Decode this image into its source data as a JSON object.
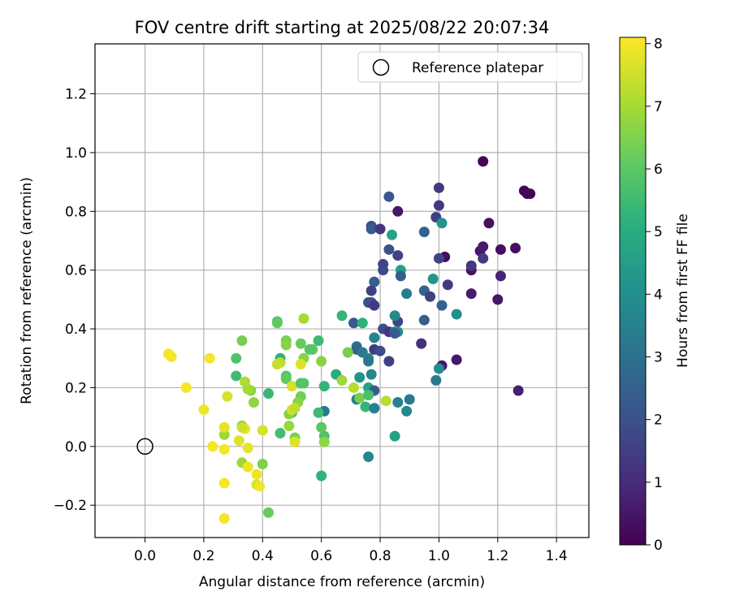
{
  "chart_data": {
    "type": "scatter",
    "title": "FOV centre drift starting at 2025/08/22 20:07:34",
    "xlabel": "Angular distance from reference (arcmin)",
    "ylabel": "Rotation from reference (arcmin)",
    "xlim": [
      -0.17,
      1.51
    ],
    "ylim": [
      -0.31,
      1.37
    ],
    "x_ticks": [
      0.0,
      0.2,
      0.4,
      0.6,
      0.8,
      1.0,
      1.2,
      1.4
    ],
    "x_tick_labels": [
      "0.0",
      "0.2",
      "0.4",
      "0.6",
      "0.8",
      "1.0",
      "1.2",
      "1.4"
    ],
    "y_ticks": [
      -0.2,
      0.0,
      0.2,
      0.4,
      0.6,
      0.8,
      1.0,
      1.2
    ],
    "y_tick_labels": [
      "−0.2",
      "0.0",
      "0.2",
      "0.4",
      "0.6",
      "0.8",
      "1.0",
      "1.2"
    ],
    "grid": true,
    "legend": {
      "position": "top-right",
      "entries": [
        "Reference platepar"
      ]
    },
    "reference_point": {
      "x": 0.0,
      "y": 0.0
    },
    "colorbar": {
      "label": "Hours from first FF file",
      "min": 0,
      "max": 8.1,
      "ticks": [
        0,
        1,
        2,
        3,
        4,
        5,
        6,
        7,
        8
      ],
      "tick_labels": [
        "0",
        "1",
        "2",
        "3",
        "4",
        "5",
        "6",
        "7",
        "8"
      ],
      "colormap": "viridis"
    },
    "points": [
      {
        "x": 1.15,
        "y": 0.97,
        "h": 0.1
      },
      {
        "x": 1.29,
        "y": 0.87,
        "h": 0.1
      },
      {
        "x": 1.3,
        "y": 0.86,
        "h": 0.1
      },
      {
        "x": 1.31,
        "y": 0.86,
        "h": 0.1
      },
      {
        "x": 1.17,
        "y": 0.76,
        "h": 0.4
      },
      {
        "x": 1.26,
        "y": 0.675,
        "h": 0.3
      },
      {
        "x": 1.21,
        "y": 0.67,
        "h": 0.3
      },
      {
        "x": 1.14,
        "y": 0.665,
        "h": 0.5
      },
      {
        "x": 1.15,
        "y": 0.68,
        "h": 0.6
      },
      {
        "x": 1.02,
        "y": 0.645,
        "h": 0.3
      },
      {
        "x": 1.11,
        "y": 0.6,
        "h": 0.4
      },
      {
        "x": 1.21,
        "y": 0.58,
        "h": 0.8
      },
      {
        "x": 1.2,
        "y": 0.5,
        "h": 0.5
      },
      {
        "x": 1.11,
        "y": 0.52,
        "h": 0.6
      },
      {
        "x": 1.03,
        "y": 0.55,
        "h": 1.4
      },
      {
        "x": 1.15,
        "y": 0.64,
        "h": 1.4
      },
      {
        "x": 1.11,
        "y": 0.615,
        "h": 1.3
      },
      {
        "x": 1.27,
        "y": 0.19,
        "h": 0.7
      },
      {
        "x": 1.06,
        "y": 0.295,
        "h": 0.5
      },
      {
        "x": 1.01,
        "y": 0.275,
        "h": 0.5
      },
      {
        "x": 1.0,
        "y": 0.88,
        "h": 1.3
      },
      {
        "x": 1.0,
        "y": 0.82,
        "h": 1.3
      },
      {
        "x": 0.99,
        "y": 0.78,
        "h": 1.5
      },
      {
        "x": 0.86,
        "y": 0.8,
        "h": 0.5
      },
      {
        "x": 0.83,
        "y": 0.85,
        "h": 2.2
      },
      {
        "x": 0.77,
        "y": 0.75,
        "h": 2.0
      },
      {
        "x": 0.77,
        "y": 0.74,
        "h": 2.3
      },
      {
        "x": 0.8,
        "y": 0.74,
        "h": 1.2
      },
      {
        "x": 0.84,
        "y": 0.72,
        "h": 4.7
      },
      {
        "x": 0.95,
        "y": 0.73,
        "h": 2.6
      },
      {
        "x": 1.01,
        "y": 0.76,
        "h": 4.2
      },
      {
        "x": 0.83,
        "y": 0.67,
        "h": 2.1
      },
      {
        "x": 0.86,
        "y": 0.65,
        "h": 1.6
      },
      {
        "x": 0.81,
        "y": 0.62,
        "h": 1.7
      },
      {
        "x": 0.81,
        "y": 0.6,
        "h": 1.8
      },
      {
        "x": 0.87,
        "y": 0.6,
        "h": 4.6
      },
      {
        "x": 0.87,
        "y": 0.58,
        "h": 2.4
      },
      {
        "x": 1.0,
        "y": 0.64,
        "h": 1.7
      },
      {
        "x": 0.98,
        "y": 0.57,
        "h": 4.2
      },
      {
        "x": 0.95,
        "y": 0.53,
        "h": 2.6
      },
      {
        "x": 0.97,
        "y": 0.51,
        "h": 1.6
      },
      {
        "x": 0.89,
        "y": 0.52,
        "h": 3.4
      },
      {
        "x": 0.78,
        "y": 0.56,
        "h": 2.4
      },
      {
        "x": 0.77,
        "y": 0.53,
        "h": 1.5
      },
      {
        "x": 0.77,
        "y": 0.49,
        "h": 1.9
      },
      {
        "x": 0.76,
        "y": 0.49,
        "h": 2.0
      },
      {
        "x": 0.78,
        "y": 0.48,
        "h": 1.4
      },
      {
        "x": 1.01,
        "y": 0.48,
        "h": 2.5
      },
      {
        "x": 1.06,
        "y": 0.45,
        "h": 4.0
      },
      {
        "x": 0.95,
        "y": 0.43,
        "h": 2.4
      },
      {
        "x": 0.86,
        "y": 0.425,
        "h": 1.7
      },
      {
        "x": 0.85,
        "y": 0.445,
        "h": 3.8
      },
      {
        "x": 0.81,
        "y": 0.4,
        "h": 1.9
      },
      {
        "x": 0.83,
        "y": 0.39,
        "h": 1.2
      },
      {
        "x": 0.85,
        "y": 0.39,
        "h": 3.7
      },
      {
        "x": 0.86,
        "y": 0.39,
        "h": 3.9
      },
      {
        "x": 0.85,
        "y": 0.385,
        "h": 2.3
      },
      {
        "x": 0.71,
        "y": 0.42,
        "h": 2.3
      },
      {
        "x": 0.74,
        "y": 0.42,
        "h": 5.2
      },
      {
        "x": 0.78,
        "y": 0.37,
        "h": 3.6
      },
      {
        "x": 0.94,
        "y": 0.35,
        "h": 1.1
      },
      {
        "x": 0.78,
        "y": 0.33,
        "h": 1.4
      },
      {
        "x": 0.8,
        "y": 0.325,
        "h": 1.9
      },
      {
        "x": 0.83,
        "y": 0.29,
        "h": 1.5
      },
      {
        "x": 0.72,
        "y": 0.34,
        "h": 3.0
      },
      {
        "x": 0.72,
        "y": 0.33,
        "h": 2.6
      },
      {
        "x": 0.74,
        "y": 0.32,
        "h": 3.3
      },
      {
        "x": 0.76,
        "y": 0.3,
        "h": 3.6
      },
      {
        "x": 0.76,
        "y": 0.29,
        "h": 3.2
      },
      {
        "x": 1.0,
        "y": 0.265,
        "h": 3.9
      },
      {
        "x": 0.99,
        "y": 0.225,
        "h": 3.3
      },
      {
        "x": 0.77,
        "y": 0.245,
        "h": 3.8
      },
      {
        "x": 0.73,
        "y": 0.235,
        "h": 4.2
      },
      {
        "x": 0.76,
        "y": 0.2,
        "h": 4.7
      },
      {
        "x": 0.78,
        "y": 0.19,
        "h": 2.4
      },
      {
        "x": 0.72,
        "y": 0.16,
        "h": 3.4
      },
      {
        "x": 0.73,
        "y": 0.165,
        "h": 6.4
      },
      {
        "x": 0.76,
        "y": 0.175,
        "h": 5.7
      },
      {
        "x": 0.75,
        "y": 0.135,
        "h": 5.3
      },
      {
        "x": 0.78,
        "y": 0.13,
        "h": 3.5
      },
      {
        "x": 0.82,
        "y": 0.155,
        "h": 7.2
      },
      {
        "x": 0.86,
        "y": 0.15,
        "h": 3.5
      },
      {
        "x": 0.9,
        "y": 0.16,
        "h": 3.3
      },
      {
        "x": 0.89,
        "y": 0.12,
        "h": 3.7
      },
      {
        "x": 0.85,
        "y": 0.035,
        "h": 4.6
      },
      {
        "x": 0.76,
        "y": -0.035,
        "h": 3.7
      },
      {
        "x": 0.67,
        "y": 0.445,
        "h": 5.3
      },
      {
        "x": 0.69,
        "y": 0.32,
        "h": 6.4
      },
      {
        "x": 0.65,
        "y": 0.245,
        "h": 5.0
      },
      {
        "x": 0.67,
        "y": 0.225,
        "h": 6.9
      },
      {
        "x": 0.71,
        "y": 0.2,
        "h": 7.2
      },
      {
        "x": 0.61,
        "y": 0.205,
        "h": 5.3
      },
      {
        "x": 0.61,
        "y": 0.12,
        "h": 3.2
      },
      {
        "x": 0.59,
        "y": 0.115,
        "h": 5.5
      },
      {
        "x": 0.61,
        "y": 0.035,
        "h": 5.8
      },
      {
        "x": 0.6,
        "y": 0.065,
        "h": 6.0
      },
      {
        "x": 0.61,
        "y": 0.015,
        "h": 6.7
      },
      {
        "x": 0.6,
        "y": -0.1,
        "h": 5.2
      },
      {
        "x": 0.6,
        "y": 0.29,
        "h": 6.6
      },
      {
        "x": 0.59,
        "y": 0.36,
        "h": 5.5
      },
      {
        "x": 0.57,
        "y": 0.33,
        "h": 6.1
      },
      {
        "x": 0.56,
        "y": 0.33,
        "h": 5.9
      },
      {
        "x": 0.54,
        "y": 0.435,
        "h": 7.0
      },
      {
        "x": 0.53,
        "y": 0.35,
        "h": 6.2
      },
      {
        "x": 0.45,
        "y": 0.425,
        "h": 5.7
      },
      {
        "x": 0.45,
        "y": 0.42,
        "h": 6.1
      },
      {
        "x": 0.48,
        "y": 0.36,
        "h": 6.4
      },
      {
        "x": 0.48,
        "y": 0.345,
        "h": 6.6
      },
      {
        "x": 0.46,
        "y": 0.3,
        "h": 5.2
      },
      {
        "x": 0.46,
        "y": 0.285,
        "h": 7.2
      },
      {
        "x": 0.45,
        "y": 0.28,
        "h": 7.4
      },
      {
        "x": 0.54,
        "y": 0.3,
        "h": 6.6
      },
      {
        "x": 0.53,
        "y": 0.28,
        "h": 7.7
      },
      {
        "x": 0.48,
        "y": 0.24,
        "h": 5.9
      },
      {
        "x": 0.48,
        "y": 0.23,
        "h": 6.1
      },
      {
        "x": 0.5,
        "y": 0.205,
        "h": 7.6
      },
      {
        "x": 0.53,
        "y": 0.215,
        "h": 5.8
      },
      {
        "x": 0.54,
        "y": 0.215,
        "h": 5.9
      },
      {
        "x": 0.53,
        "y": 0.17,
        "h": 6.3
      },
      {
        "x": 0.52,
        "y": 0.15,
        "h": 6.6
      },
      {
        "x": 0.5,
        "y": 0.115,
        "h": 5.7
      },
      {
        "x": 0.49,
        "y": 0.11,
        "h": 6.6
      },
      {
        "x": 0.5,
        "y": 0.125,
        "h": 7.6
      },
      {
        "x": 0.51,
        "y": 0.13,
        "h": 7.3
      },
      {
        "x": 0.49,
        "y": 0.07,
        "h": 6.8
      },
      {
        "x": 0.46,
        "y": 0.045,
        "h": 5.6
      },
      {
        "x": 0.51,
        "y": 0.03,
        "h": 6.5
      },
      {
        "x": 0.51,
        "y": 0.015,
        "h": 7.7
      },
      {
        "x": 0.42,
        "y": 0.18,
        "h": 5.4
      },
      {
        "x": 0.37,
        "y": 0.15,
        "h": 6.7
      },
      {
        "x": 0.36,
        "y": 0.19,
        "h": 6.6
      },
      {
        "x": 0.35,
        "y": 0.195,
        "h": 7.0
      },
      {
        "x": 0.34,
        "y": 0.22,
        "h": 7.1
      },
      {
        "x": 0.31,
        "y": 0.3,
        "h": 5.8
      },
      {
        "x": 0.33,
        "y": 0.36,
        "h": 6.4
      },
      {
        "x": 0.31,
        "y": 0.24,
        "h": 5.5
      },
      {
        "x": 0.28,
        "y": 0.17,
        "h": 7.6
      },
      {
        "x": 0.4,
        "y": 0.055,
        "h": 7.6
      },
      {
        "x": 0.33,
        "y": 0.07,
        "h": 6.4
      },
      {
        "x": 0.34,
        "y": 0.06,
        "h": 7.8
      },
      {
        "x": 0.33,
        "y": 0.065,
        "h": 7.5
      },
      {
        "x": 0.27,
        "y": 0.04,
        "h": 6.9
      },
      {
        "x": 0.27,
        "y": 0.065,
        "h": 7.8
      },
      {
        "x": 0.32,
        "y": 0.02,
        "h": 7.7
      },
      {
        "x": 0.35,
        "y": -0.005,
        "h": 7.8
      },
      {
        "x": 0.27,
        "y": -0.01,
        "h": 8.0
      },
      {
        "x": 0.23,
        "y": 0.0,
        "h": 8.0
      },
      {
        "x": 0.33,
        "y": -0.055,
        "h": 6.9
      },
      {
        "x": 0.35,
        "y": -0.07,
        "h": 7.9
      },
      {
        "x": 0.38,
        "y": -0.095,
        "h": 7.9
      },
      {
        "x": 0.38,
        "y": -0.13,
        "h": 7.6
      },
      {
        "x": 0.39,
        "y": -0.135,
        "h": 7.9
      },
      {
        "x": 0.4,
        "y": -0.06,
        "h": 6.5
      },
      {
        "x": 0.42,
        "y": -0.225,
        "h": 6.2
      },
      {
        "x": 0.27,
        "y": -0.125,
        "h": 8.0
      },
      {
        "x": 0.27,
        "y": -0.245,
        "h": 8.0
      },
      {
        "x": 0.08,
        "y": 0.315,
        "h": 8.0
      },
      {
        "x": 0.09,
        "y": 0.305,
        "h": 8.0
      },
      {
        "x": 0.22,
        "y": 0.3,
        "h": 8.0
      },
      {
        "x": 0.14,
        "y": 0.2,
        "h": 8.0
      },
      {
        "x": 0.2,
        "y": 0.125,
        "h": 7.9
      }
    ]
  }
}
